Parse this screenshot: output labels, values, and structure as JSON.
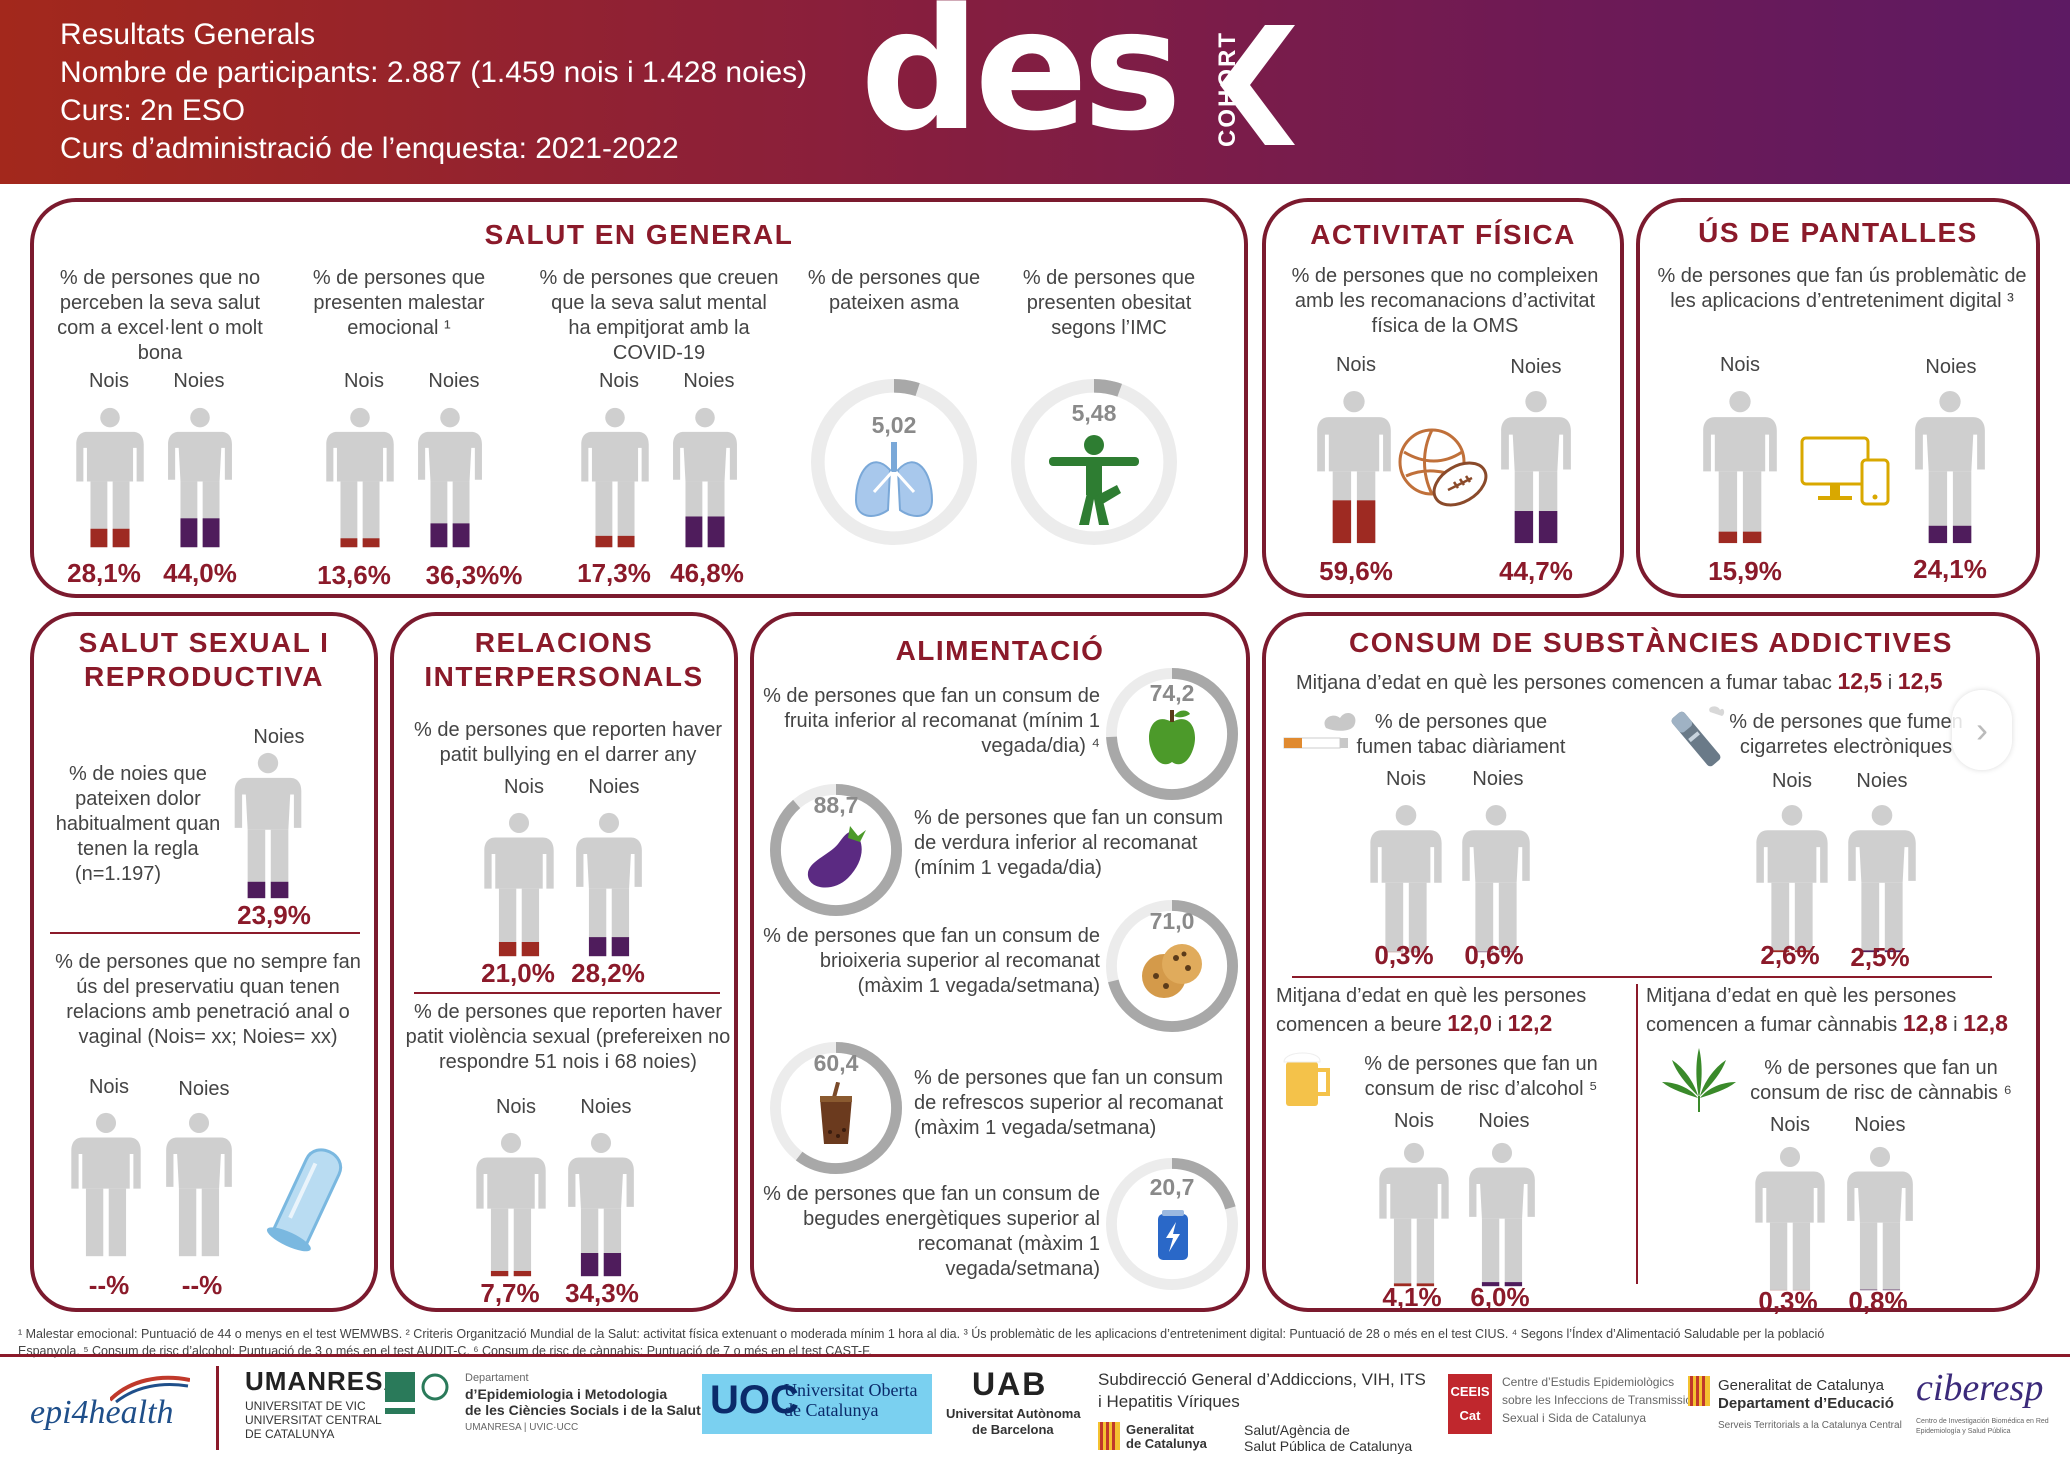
{
  "header": {
    "line1": "Resultats Generals",
    "line2": "Nombre de participants: 2.887 (1.459 nois i 1.428 noies)",
    "line3": "Curs: 2n ESO",
    "line4": "Curs d’administració de l’enquesta: 2021-2022",
    "logo_word": "des",
    "logo_side": "COHORT"
  },
  "colors": {
    "boys": "#9e2a22",
    "girls": "#4f1c5c",
    "figure": "#cfcfcf",
    "accent": "#8b1a2a"
  },
  "labels": {
    "boys": "Nois",
    "girls": "Noies"
  },
  "salut_general": {
    "title": "SALUT EN GENERAL",
    "items": [
      {
        "desc": "% de persones que no perceben la seva salut com a excel·lent o molt bona",
        "boys": "28,1%",
        "girls": "44,0%",
        "boys_pct": 28.1,
        "girls_pct": 44.0
      },
      {
        "desc": "% de persones que presenten malestar emocional ¹",
        "boys": "13,6%",
        "girls": "36,3%%",
        "boys_pct": 13.6,
        "girls_pct": 36.3
      },
      {
        "desc": "% de persones que creuen que la seva salut mental ha empitjorat amb la COVID-19",
        "boys": "17,3%",
        "girls": "46,8%",
        "boys_pct": 17.3,
        "girls_pct": 46.8
      }
    ],
    "asma": {
      "desc": "% de persones que pateixen asma",
      "value": "5,02",
      "pct": 5.02,
      "icon": "lungs-icon"
    },
    "obesitat": {
      "desc": "% de persones que presenten obesitat segons l’IMC",
      "value": "5,48",
      "pct": 5.48,
      "icon": "person-stretch-icon"
    }
  },
  "activitat_fisica": {
    "title": "ACTIVITAT FÍSICA",
    "desc": "% de persones que no compleixen amb les recomanacions d’activitat física de la OMS",
    "boys": "59,6%",
    "girls": "44,7%",
    "boys_pct": 59.6,
    "girls_pct": 44.7
  },
  "pantalles": {
    "title": "ÚS DE PANTALLES",
    "desc": "% de persones que fan ús problemàtic de les aplicacions d’entreteniment digital ³",
    "boys": "15,9%",
    "girls": "24,1%",
    "boys_pct": 15.9,
    "girls_pct": 24.1
  },
  "salut_sexual": {
    "title1": "SALUT SEXUAL I",
    "title2": "REPRODUCTIVA",
    "dolor_desc": "% de noies que pateixen dolor habitualment quan tenen la regla",
    "dolor_n": "(n=1.197)",
    "dolor_value": "23,9%",
    "dolor_pct": 23.9,
    "preservatiu_desc": "% de persones que no sempre fan ús del preservatiu quan tenen relacions amb penetració anal o vaginal (Nois= xx; Noies= xx)",
    "boys": "--%",
    "girls": "--%"
  },
  "relacions": {
    "title1": "RELACIONS",
    "title2": "INTERPERSONALS",
    "bullying_desc": "% de persones que reporten haver patit bullying en el darrer any",
    "bullying_boys": "21,0%",
    "bullying_girls": "28,2%",
    "bullying_boys_pct": 21.0,
    "bullying_girls_pct": 28.2,
    "violencia_desc": "% de persones que reporten haver patit violència sexual (prefereixen no respondre 51 nois i 68 noies)",
    "violencia_boys": "7,7%",
    "violencia_girls": "34,3%",
    "violencia_boys_pct": 7.7,
    "violencia_girls_pct": 34.3
  },
  "alimentacio": {
    "title": "ALIMENTACIÓ",
    "items": [
      {
        "desc": "% de persones que fan un consum de fruita inferior al recomanat (mínim 1 vegada/dia) ⁴",
        "value": "74,2",
        "pct": 74.2,
        "icon": "apple-icon"
      },
      {
        "desc": "% de persones que fan un consum de verdura inferior al recomanat (mínim 1 vegada/dia)",
        "value": "88,7",
        "pct": 88.7,
        "icon": "eggplant-icon"
      },
      {
        "desc": "% de persones que fan un consum de brioixeria superior al recomanat (màxim 1 vegada/setmana)",
        "value": "71,0",
        "pct": 71.0,
        "icon": "cookie-icon"
      },
      {
        "desc": "% de persones que fan un consum de refrescos superior al recomanat (màxim 1 vegada/setmana)",
        "value": "60,4",
        "pct": 60.4,
        "icon": "soda-icon"
      },
      {
        "desc": "% de persones que fan un consum de begudes energètiques superior al recomanat (màxim 1 vegada/setmana)",
        "value": "20,7",
        "pct": 20.7,
        "icon": "energy-drink-icon"
      }
    ]
  },
  "substancies": {
    "title": "CONSUM DE SUBSTÀNCIES ADDICTIVES",
    "tabac_age_text": "Mitjana d’edat en què les persones comencen a fumar tabac",
    "tabac_age_boys": "12,5",
    "tabac_age_sep": "i",
    "tabac_age_girls": "12,5",
    "tabac_desc": "% de persones que fumen tabac diàriament",
    "tabac_boys": "0,3%",
    "tabac_girls": "0,6%",
    "tabac_boys_pct": 0.3,
    "tabac_girls_pct": 0.6,
    "ecig_desc": "% de persones que fumen cigarretes electròniques",
    "ecig_boys": "2,6%",
    "ecig_girls": "2,5%",
    "ecig_boys_pct": 2.6,
    "ecig_girls_pct": 2.5,
    "alcohol_age_text1": "Mitjana d’edat en què les persones",
    "alcohol_age_text2": "comencen a beure",
    "alcohol_age_boys": "12,0",
    "alcohol_age_sep": "i",
    "alcohol_age_girls": "12,2",
    "alcohol_desc": "% de persones que fan un consum de risc d’alcohol ⁵",
    "alcohol_boys": "4,1%",
    "alcohol_girls": "6,0%",
    "alcohol_boys_pct": 4.1,
    "alcohol_girls_pct": 6.0,
    "cannabis_age_text1": "Mitjana d’edat en què les persones",
    "cannabis_age_text2": "comencen a fumar cànnabis",
    "cannabis_age_boys": "12,8",
    "cannabis_age_sep": "i",
    "cannabis_age_girls": "12,8",
    "cannabis_desc": "% de persones que fan un consum de risc de cànnabis ⁶",
    "cannabis_boys": "0,3%",
    "cannabis_girls": "0,8%",
    "cannabis_boys_pct": 0.3,
    "cannabis_girls_pct": 0.8
  },
  "footnotes": {
    "line1": "¹ Malestar emocional: Puntuació de 44 o menys en el test WEMWBS. ² Criteris Organització Mundial de la Salut: activitat física extenuant o moderada mínim 1 hora al dia. ³ Ús problemàtic de les aplicacions d’entreteniment digital: Puntuació de 28 o més en el test CIUS. ⁴ Segons l’Índex d’Alimentació Saludable per la població",
    "line2": "Espanyola. ⁵ Consum de risc d’alcohol: Puntuació de 3 o més en el test AUDIT-C. ⁶ Consum de risc de cànnabis: Puntuació de 7 o més en el test CAST-F."
  },
  "logos": {
    "epi": "epi4health",
    "umanresa": "UMANRESA",
    "umanresa_sub1": "UNIVERSITAT DE VIC",
    "umanresa_sub2": "UNIVERSITAT CENTRAL",
    "umanresa_sub3": "DE CATALUNYA",
    "dept_small": "Departament",
    "dept_line1": "d’Epidemiologia i Metodologia",
    "dept_line2": "de les Ciències Socials i de la Salut",
    "dept_line3": "UMANRESA | UVIC·UCC",
    "uoc": "UOC",
    "uoc_line1": "Universitat Oberta",
    "uoc_line2": "de Catalunya",
    "uab": "UAB",
    "uab_line1": "Universitat Autònoma",
    "uab_line2": "de Barcelona",
    "sub_line1": "Subdirecció General d’Addiccions, VIH, ITS",
    "sub_line2": "i Hepatitis Víriques",
    "gen1": "Generalitat",
    "gen2": "de Catalunya",
    "aspc1": "Salut/Agència de",
    "aspc2": "Salut Pública de Catalunya",
    "ceeis": "CEEIS Cat",
    "ceeis_line1": "Centre d’Estudis Epidemiològics",
    "ceeis_line2": "sobre les Infeccions de Transmissió",
    "ceeis_line3": "Sexual i Sida de Catalunya",
    "edu_line1": "Generalitat de Catalunya",
    "edu_line2": "Departament d’Educació",
    "edu_line3": "Serveis Territorials a la Catalunya Central",
    "ciberesp": "ciberesp",
    "ciberesp_sub1": "Centro de Investigación Biomédica en Red",
    "ciberesp_sub2": "Epidemiología y Salud Pública"
  }
}
